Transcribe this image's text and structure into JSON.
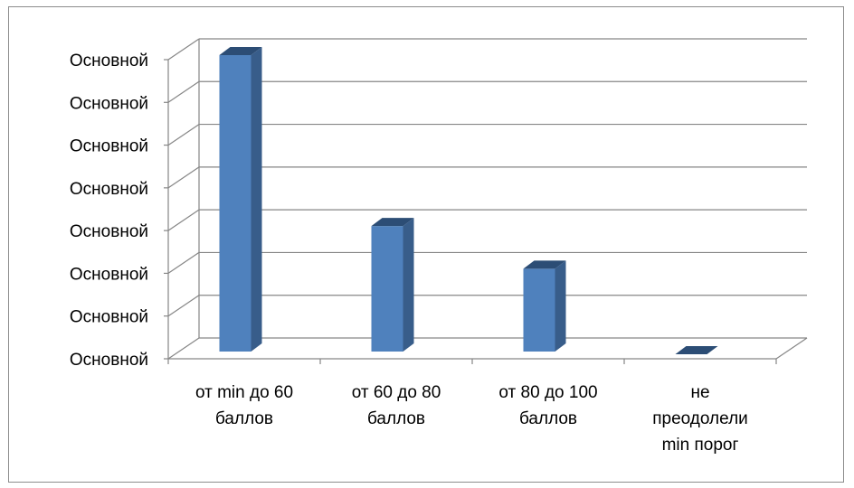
{
  "chart_data": {
    "type": "bar",
    "style": "3d-column",
    "categories": [
      "от min до 60 баллов",
      "от 60 до 80 баллов",
      "от 80 до 100 баллов",
      "не преодолели min порог"
    ],
    "category_lines": [
      [
        "от min до 60",
        "баллов"
      ],
      [
        "от 60 до 80",
        "баллов"
      ],
      [
        "от 80 до 100",
        "баллов"
      ],
      [
        "не",
        "преодолели",
        "min порог"
      ]
    ],
    "values": [
      7,
      3,
      2,
      0
    ],
    "ylim": [
      0,
      7
    ],
    "ytick_values": [
      0,
      1,
      2,
      3,
      4,
      5,
      6,
      7
    ],
    "ytick_labels": [
      "Основной",
      "Основной",
      "Основной",
      "Основной",
      "Основной",
      "Основной",
      "Основной",
      "Основной"
    ],
    "grid": true,
    "legend": "none",
    "colors": {
      "bar_front": "#4f81bd",
      "bar_side": "#385d8a",
      "bar_top": "#2c4d75",
      "grid": "#868686",
      "frame": "#8c8c8c"
    }
  }
}
